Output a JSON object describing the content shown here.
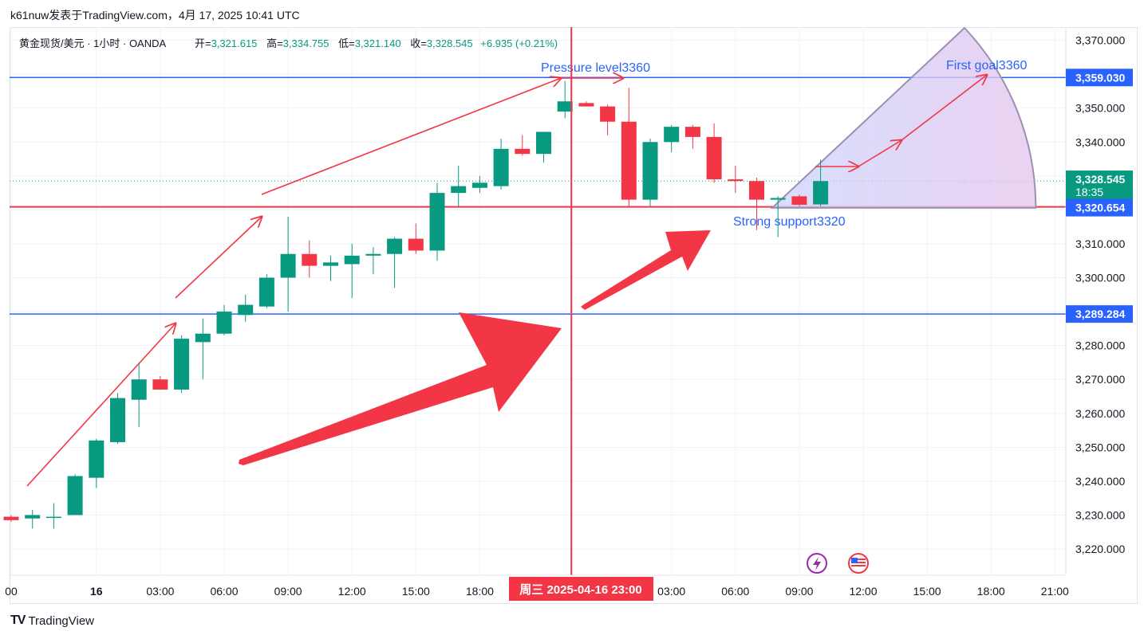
{
  "header": {
    "author_line": "k61nuw发表于TradingView.com，4月 17, 2025 10:41 UTC"
  },
  "legend": {
    "symbol": "黄金现货/美元 · 1小时 · OANDA",
    "open_label": "开=",
    "open_value": "3,321.615",
    "high_label": "高=",
    "high_value": "3,334.755",
    "low_label": "低=",
    "low_value": "3,321.140",
    "close_label": "收=",
    "close_value": "3,328.545",
    "change": "+6.935 (+0.21%)"
  },
  "footer": {
    "brand": "TradingView",
    "brand_mark": "TV"
  },
  "colors": {
    "up": "#089981",
    "down": "#f23645",
    "level_blue": "#2962ff",
    "annotation_red": "#f23645",
    "fan_edge": "#9c8fb0"
  },
  "icons": [
    "lightning-icon",
    "us-flag-icon"
  ],
  "chart_data": {
    "type": "candlestick",
    "y_range": [
      3214,
      3374
    ],
    "y_ticks": [
      "3,220.000",
      "3,230.000",
      "3,240.000",
      "3,250.000",
      "3,260.000",
      "3,270.000",
      "3,280.000",
      "3,290.000",
      "3,300.000",
      "3,310.000",
      "3,320.000",
      "3,330.000",
      "3,340.000",
      "3,350.000",
      "3,360.000",
      "3,370.000"
    ],
    "x_ticks": [
      {
        "label": "00",
        "bar": 0
      },
      {
        "label": "16",
        "bar": 4
      },
      {
        "label": "03:00",
        "bar": 7
      },
      {
        "label": "06:00",
        "bar": 10
      },
      {
        "label": "09:00",
        "bar": 13
      },
      {
        "label": "12:00",
        "bar": 16
      },
      {
        "label": "15:00",
        "bar": 19
      },
      {
        "label": "18:00",
        "bar": 22
      },
      {
        "label": "03:00",
        "bar": 31
      },
      {
        "label": "06:00",
        "bar": 34
      },
      {
        "label": "09:00",
        "bar": 37
      },
      {
        "label": "12:00",
        "bar": 40
      },
      {
        "label": "15:00",
        "bar": 43
      },
      {
        "label": "18:00",
        "bar": 46
      },
      {
        "label": "21:00",
        "bar": 49
      }
    ],
    "candles": [
      {
        "o": 3229.5,
        "h": 3230.0,
        "l": 3228.0,
        "c": 3228.5
      },
      {
        "o": 3229.0,
        "h": 3231.5,
        "l": 3226.0,
        "c": 3230.0
      },
      {
        "o": 3229.5,
        "h": 3233.5,
        "l": 3226.0,
        "c": 3229.5
      },
      {
        "o": 3230.0,
        "h": 3242.0,
        "l": 3230.0,
        "c": 3241.5
      },
      {
        "o": 3241.0,
        "h": 3252.5,
        "l": 3238.0,
        "c": 3252.0
      },
      {
        "o": 3251.5,
        "h": 3266.0,
        "l": 3251.0,
        "c": 3264.5
      },
      {
        "o": 3264.0,
        "h": 3275.0,
        "l": 3256.0,
        "c": 3270.0
      },
      {
        "o": 3270.0,
        "h": 3271.0,
        "l": 3267.0,
        "c": 3267.0
      },
      {
        "o": 3267.0,
        "h": 3283.0,
        "l": 3266.0,
        "c": 3282.0
      },
      {
        "o": 3281.0,
        "h": 3288.0,
        "l": 3270.0,
        "c": 3283.5
      },
      {
        "o": 3283.5,
        "h": 3292.0,
        "l": 3283.0,
        "c": 3290.0
      },
      {
        "o": 3289.0,
        "h": 3295.0,
        "l": 3287.0,
        "c": 3292.0
      },
      {
        "o": 3291.5,
        "h": 3301.0,
        "l": 3291.0,
        "c": 3300.0
      },
      {
        "o": 3300.0,
        "h": 3318.0,
        "l": 3290.0,
        "c": 3307.0
      },
      {
        "o": 3307.0,
        "h": 3311.0,
        "l": 3300.0,
        "c": 3303.5
      },
      {
        "o": 3303.5,
        "h": 3306.5,
        "l": 3299.0,
        "c": 3304.5
      },
      {
        "o": 3304.0,
        "h": 3310.0,
        "l": 3294.0,
        "c": 3306.5
      },
      {
        "o": 3306.5,
        "h": 3309.0,
        "l": 3301.0,
        "c": 3307.0
      },
      {
        "o": 3307.0,
        "h": 3312.0,
        "l": 3297.0,
        "c": 3311.5
      },
      {
        "o": 3311.5,
        "h": 3316.0,
        "l": 3307.0,
        "c": 3308.0
      },
      {
        "o": 3308.0,
        "h": 3328.0,
        "l": 3305.0,
        "c": 3325.0
      },
      {
        "o": 3325.0,
        "h": 3333.0,
        "l": 3321.0,
        "c": 3327.0
      },
      {
        "o": 3326.5,
        "h": 3330.0,
        "l": 3325.0,
        "c": 3328.0
      },
      {
        "o": 3327.0,
        "h": 3341.0,
        "l": 3326.0,
        "c": 3338.0
      },
      {
        "o": 3338.0,
        "h": 3342.0,
        "l": 3336.0,
        "c": 3336.5
      },
      {
        "o": 3336.5,
        "h": 3343.0,
        "l": 3334.0,
        "c": 3343.0
      },
      {
        "o": 3349.0,
        "h": 3358.0,
        "l": 3347.0,
        "c": 3352.0
      },
      {
        "o": 3351.5,
        "h": 3352.0,
        "l": 3350.5,
        "c": 3350.5
      },
      {
        "o": 3350.5,
        "h": 3351.0,
        "l": 3342.0,
        "c": 3346.0
      },
      {
        "o": 3346.0,
        "h": 3356.0,
        "l": 3321.0,
        "c": 3323.0
      },
      {
        "o": 3323.0,
        "h": 3341.0,
        "l": 3321.0,
        "c": 3340.0
      },
      {
        "o": 3340.0,
        "h": 3345.0,
        "l": 3337.0,
        "c": 3344.5
      },
      {
        "o": 3344.5,
        "h": 3345.0,
        "l": 3338.0,
        "c": 3341.5
      },
      {
        "o": 3341.5,
        "h": 3345.5,
        "l": 3328.0,
        "c": 3329.0
      },
      {
        "o": 3329.0,
        "h": 3333.0,
        "l": 3325.0,
        "c": 3328.5
      },
      {
        "o": 3328.5,
        "h": 3329.5,
        "l": 3314.0,
        "c": 3323.0
      },
      {
        "o": 3323.0,
        "h": 3324.0,
        "l": 3312.0,
        "c": 3323.5
      },
      {
        "o": 3324.0,
        "h": 3324.5,
        "l": 3321.0,
        "c": 3321.5
      },
      {
        "o": 3321.6,
        "h": 3334.8,
        "l": 3321.1,
        "c": 3328.5
      }
    ],
    "horizontal_levels": [
      {
        "value": 3359.03,
        "label": "3,359.030",
        "color": "#2962ff"
      },
      {
        "value": 3289.284,
        "label": "3,289.284",
        "color": "#2962ff"
      },
      {
        "value": 3320.893,
        "label": "3,320.893",
        "color": "#f23645"
      }
    ],
    "price_tags": [
      {
        "value": 3328.545,
        "label": "3,328.545",
        "sub": "18:35",
        "color": "#089981"
      },
      {
        "value": 3320.654,
        "label": "3,320.654",
        "color": "#2962ff"
      }
    ],
    "crosshair": {
      "bar": 26.3,
      "label": "周三 2025-04-16   23:00"
    },
    "annotations": [
      {
        "text": "Pressure level3360",
        "value": 3361
      },
      {
        "text": "Strong support3320",
        "value": 3317
      },
      {
        "text": "First goal3360",
        "value": 3362
      }
    ]
  }
}
